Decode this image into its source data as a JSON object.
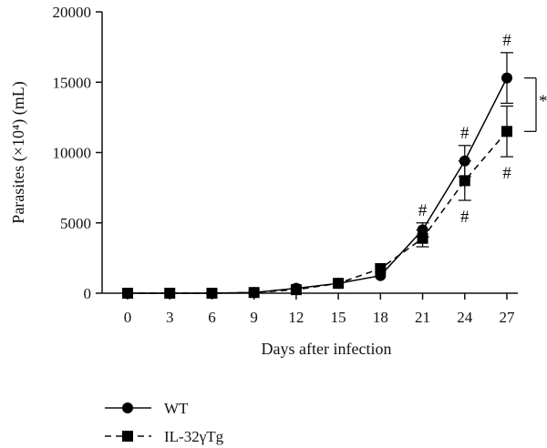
{
  "chart_data": {
    "type": "line",
    "xlabel": "Days after infection",
    "ylabel": "Parasites (×10⁴) (mL)",
    "x": [
      0,
      3,
      6,
      9,
      12,
      15,
      18,
      21,
      24,
      27
    ],
    "xlim": [
      0,
      27
    ],
    "ylim": [
      0,
      20000
    ],
    "yticks": [
      0,
      5000,
      10000,
      15000,
      20000
    ],
    "series": [
      {
        "name": "WT",
        "marker": "circle",
        "line": "solid",
        "color": "#000000",
        "values": [
          0,
          0,
          0,
          50,
          350,
          700,
          1250,
          4500,
          9400,
          15300
        ],
        "errors": [
          0,
          0,
          0,
          0,
          0,
          0,
          0,
          500,
          1100,
          1800
        ],
        "marks": [
          "",
          "",
          "",
          "",
          "",
          "",
          "",
          "#",
          "#",
          "#"
        ]
      },
      {
        "name": "IL-32γTg",
        "marker": "square",
        "line": "dashed",
        "color": "#000000",
        "values": [
          0,
          0,
          0,
          50,
          250,
          700,
          1750,
          3900,
          8000,
          11500
        ],
        "errors": [
          0,
          0,
          0,
          0,
          0,
          0,
          0,
          600,
          1400,
          1800
        ],
        "marks": [
          "",
          "",
          "",
          "",
          "",
          "",
          "",
          "",
          "#",
          "#"
        ]
      }
    ],
    "significance": {
      "label": "*",
      "from": 15300,
      "to": 11500
    },
    "legend": "bottom-left"
  }
}
